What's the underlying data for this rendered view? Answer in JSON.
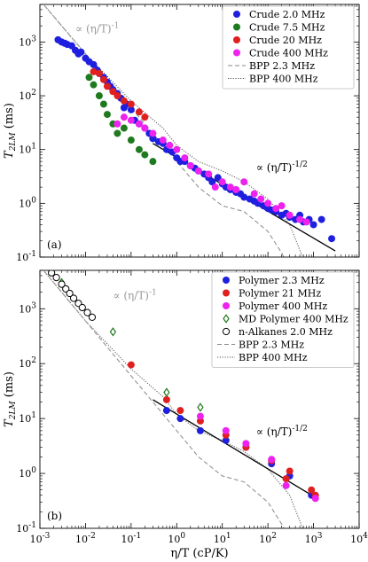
{
  "chart_data": [
    {
      "type": "scatter",
      "panel_label": "(a)",
      "xlog": true,
      "ylog": true,
      "xlim": [
        0.001,
        10000
      ],
      "ylim": [
        0.1,
        5000
      ],
      "ylabel": "T_2LM (ms)",
      "xlabel": "",
      "legend_position": "top-right",
      "yticks": [
        "10^-1",
        "10^0",
        "10^1",
        "10^2",
        "10^3"
      ],
      "annotations": [
        {
          "text": "∝ (η/T)^-1",
          "x": 0.006,
          "y": 1500,
          "color": "#999999"
        },
        {
          "text": "∝ (η/T)^-1/2",
          "x": 55,
          "y": 4.0,
          "color": "#000000"
        }
      ],
      "series": [
        {
          "name": "Crude 2.0 MHz",
          "kind": "points",
          "color": "#1f1fe0",
          "x": [
            0.0025,
            0.003,
            0.0035,
            0.004,
            0.005,
            0.006,
            0.007,
            0.008,
            0.01,
            0.012,
            0.015,
            0.018,
            0.02,
            0.025,
            0.03,
            0.035,
            0.04,
            0.05,
            0.06,
            0.07,
            0.08,
            0.1,
            0.12,
            0.15,
            0.2,
            0.25,
            0.3,
            0.4,
            0.5,
            0.6,
            0.8,
            1,
            1.2,
            1.5,
            2,
            2.5,
            3,
            4,
            5,
            6,
            8,
            10,
            12,
            15,
            20,
            25,
            30,
            40,
            50,
            60,
            80,
            100,
            120,
            150,
            200,
            250,
            300,
            400,
            500,
            600,
            800,
            1000,
            1500,
            2500
          ],
          "y": [
            1100,
            1000,
            950,
            900,
            850,
            700,
            600,
            650,
            500,
            430,
            380,
            300,
            260,
            220,
            180,
            150,
            130,
            110,
            90,
            60,
            70,
            55,
            35,
            30,
            25,
            20,
            16,
            14,
            13,
            10,
            9,
            7,
            6,
            6,
            5,
            4.5,
            4,
            3.5,
            3,
            2.5,
            3,
            2.3,
            2,
            1.8,
            1.6,
            1.5,
            1.3,
            1.2,
            1.1,
            1,
            0.9,
            0.8,
            0.75,
            0.7,
            0.6,
            0.65,
            0.55,
            0.5,
            0.6,
            0.45,
            0.5,
            0.4,
            0.5,
            0.22
          ]
        },
        {
          "name": "Crude 7.5 MHz",
          "kind": "points",
          "color": "#1f7a1f",
          "x": [
            0.012,
            0.015,
            0.02,
            0.025,
            0.03,
            0.04,
            0.05,
            0.07,
            0.1,
            0.15,
            0.2,
            0.3
          ],
          "y": [
            220,
            160,
            100,
            70,
            45,
            30,
            20,
            25,
            15,
            10,
            8,
            6
          ]
        },
        {
          "name": "Crude 20 MHz",
          "kind": "points",
          "color": "#e01f1f",
          "x": [
            0.015,
            0.02,
            0.025,
            0.03,
            0.04,
            0.05,
            0.07,
            0.1,
            0.15,
            0.2
          ],
          "y": [
            280,
            260,
            200,
            150,
            120,
            100,
            80,
            70,
            50,
            40
          ]
        },
        {
          "name": "Crude 400 MHz",
          "kind": "points",
          "color": "#ee22ee",
          "x": [
            0.05,
            0.07,
            0.1,
            0.15,
            0.2,
            0.3,
            0.5,
            0.7,
            1,
            1.5,
            2,
            3,
            5,
            7,
            10,
            15,
            20,
            30,
            50,
            70,
            100,
            150,
            200,
            300,
            500,
            700
          ],
          "y": [
            30,
            40,
            35,
            30,
            25,
            20,
            15,
            12,
            10,
            7,
            5,
            4,
            3.5,
            2,
            2.5,
            2,
            1.8,
            2.5,
            1.5,
            1.2,
            1,
            0.8,
            0.9,
            0.6,
            0.5,
            0.45
          ]
        },
        {
          "name": "BPP 2.3 MHz",
          "kind": "line",
          "style": "dashed",
          "color": "#888888",
          "x": [
            0.001,
            0.01,
            0.1,
            1,
            3,
            10,
            30,
            100,
            200,
            300
          ],
          "y": [
            6000,
            600,
            60,
            6,
            2,
            0.9,
            0.7,
            0.3,
            0.12,
            0.06
          ]
        },
        {
          "name": "BPP 400 MHz",
          "kind": "line",
          "style": "dotted",
          "color": "#555555",
          "x": [
            0.001,
            0.01,
            0.1,
            0.5,
            1,
            3,
            10,
            30,
            100,
            300,
            800
          ],
          "y": [
            6000,
            600,
            80,
            25,
            12,
            6,
            4,
            2.5,
            1.2,
            0.4,
            0.05
          ]
        },
        {
          "name": "",
          "kind": "line",
          "style": "solid",
          "color": "#000000",
          "x": [
            0.3,
            3000
          ],
          "y": [
            13,
            0.13
          ]
        },
        {
          "name": "",
          "kind": "line",
          "style": "dashed",
          "color": "#999999",
          "x": [
            0.001,
            0.2
          ],
          "y": [
            6000,
            30
          ]
        }
      ]
    },
    {
      "type": "scatter",
      "panel_label": "(b)",
      "xlog": true,
      "ylog": true,
      "xlim": [
        0.001,
        10000
      ],
      "ylim": [
        0.1,
        5000
      ],
      "ylabel": "T_2LM (ms)",
      "xlabel": "η/T (cP/K)",
      "legend_position": "top-right",
      "xticks": [
        "10^-3",
        "10^-2",
        "10^-1",
        "10^0",
        "10^1",
        "10^2",
        "10^3",
        "10^4"
      ],
      "yticks": [
        "10^-1",
        "10^0",
        "10^1",
        "10^2",
        "10^3"
      ],
      "annotations": [
        {
          "text": "∝ (η/T)^-1",
          "x": 0.04,
          "y": 1500,
          "color": "#999999"
        },
        {
          "text": "∝ (η/T)^-1/2",
          "x": 55,
          "y": 5.0,
          "color": "#000000"
        }
      ],
      "series": [
        {
          "name": "Polymer 2.3 MHz",
          "kind": "points",
          "color": "#1f1fe0",
          "x": [
            0.6,
            1.2,
            3.3,
            12,
            33,
            120,
            300,
            900
          ],
          "y": [
            14,
            10,
            6,
            4,
            3,
            1.5,
            0.9,
            0.4
          ]
        },
        {
          "name": "Polymer 21 MHz",
          "kind": "points",
          "color": "#e01f1f",
          "x": [
            0.1,
            0.6,
            1.2,
            3.3,
            12,
            33,
            120,
            250,
            300,
            900,
            1100
          ],
          "y": [
            95,
            22,
            14,
            9,
            5,
            3,
            1.7,
            0.8,
            1.1,
            0.5,
            0.4
          ]
        },
        {
          "name": "Polymer 400 MHz",
          "kind": "points",
          "color": "#ee22ee",
          "x": [
            3.3,
            12,
            33,
            120,
            250,
            1100
          ],
          "y": [
            11,
            6,
            3.5,
            1.8,
            0.6,
            0.35
          ]
        },
        {
          "name": "MD Polymer 400 MHz",
          "kind": "open-diamond",
          "color": "#1f7a1f",
          "x": [
            0.003,
            0.04,
            0.6,
            3.3
          ],
          "y": [
            3000,
            380,
            30,
            16
          ]
        },
        {
          "name": "n-Alkanes 2.0 MHz",
          "kind": "open-circle",
          "color": "#000000",
          "x": [
            0.0018,
            0.0023,
            0.003,
            0.0037,
            0.0045,
            0.0055,
            0.007,
            0.0085,
            0.011,
            0.014
          ],
          "y": [
            4500,
            3700,
            2800,
            2300,
            1900,
            1550,
            1250,
            1050,
            850,
            700
          ]
        },
        {
          "name": "BPP 2.3 MHz",
          "kind": "line",
          "style": "dashed",
          "color": "#888888",
          "x": [
            0.001,
            0.01,
            0.1,
            1,
            3,
            10,
            30,
            100,
            200,
            300
          ],
          "y": [
            6000,
            600,
            60,
            6,
            2,
            0.9,
            0.7,
            0.3,
            0.12,
            0.06
          ]
        },
        {
          "name": "BPP 400 MHz",
          "kind": "line",
          "style": "dotted",
          "color": "#555555",
          "x": [
            0.001,
            0.01,
            0.1,
            0.5,
            1,
            3,
            10,
            30,
            100,
            300,
            800
          ],
          "y": [
            6000,
            600,
            80,
            25,
            12,
            6,
            4,
            2.5,
            1.2,
            0.4,
            0.05
          ]
        },
        {
          "name": "",
          "kind": "line",
          "style": "solid",
          "color": "#000000",
          "x": [
            0.3,
            1200
          ],
          "y": [
            22,
            0.35
          ]
        },
        {
          "name": "",
          "kind": "line",
          "style": "dashed",
          "color": "#999999",
          "x": [
            0.001,
            0.2
          ],
          "y": [
            6000,
            30
          ]
        }
      ]
    }
  ]
}
